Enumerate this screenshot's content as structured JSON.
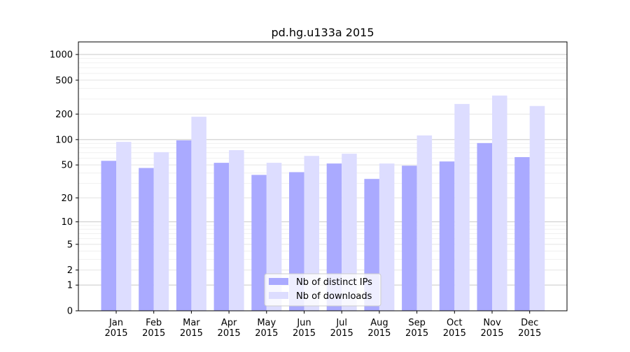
{
  "chart_data": {
    "type": "bar",
    "title": "pd.hg.u133a 2015",
    "xlabel": "",
    "ylabel": "",
    "yscale": "log10(1+y)",
    "ylim": [
      0,
      1300
    ],
    "yticks": [
      0,
      1,
      2,
      5,
      10,
      20,
      50,
      100,
      200,
      500,
      1000
    ],
    "categories": [
      "Jan\n2015",
      "Feb\n2015",
      "Mar\n2015",
      "Apr\n2015",
      "May\n2015",
      "Jun\n2015",
      "Jul\n2015",
      "Aug\n2015",
      "Sep\n2015",
      "Oct\n2015",
      "Nov\n2015",
      "Dec\n2015"
    ],
    "series": [
      {
        "name": "Nb of distinct IPs",
        "color": "#aaaaff",
        "values": [
          56,
          46,
          98,
          53,
          38,
          41,
          52,
          34,
          49,
          55,
          91,
          62
        ]
      },
      {
        "name": "Nb of downloads",
        "color": "#ddddff",
        "values": [
          94,
          71,
          186,
          75,
          53,
          64,
          68,
          52,
          112,
          263,
          330,
          249
        ]
      }
    ],
    "legend": "lower-center",
    "grid": true
  }
}
